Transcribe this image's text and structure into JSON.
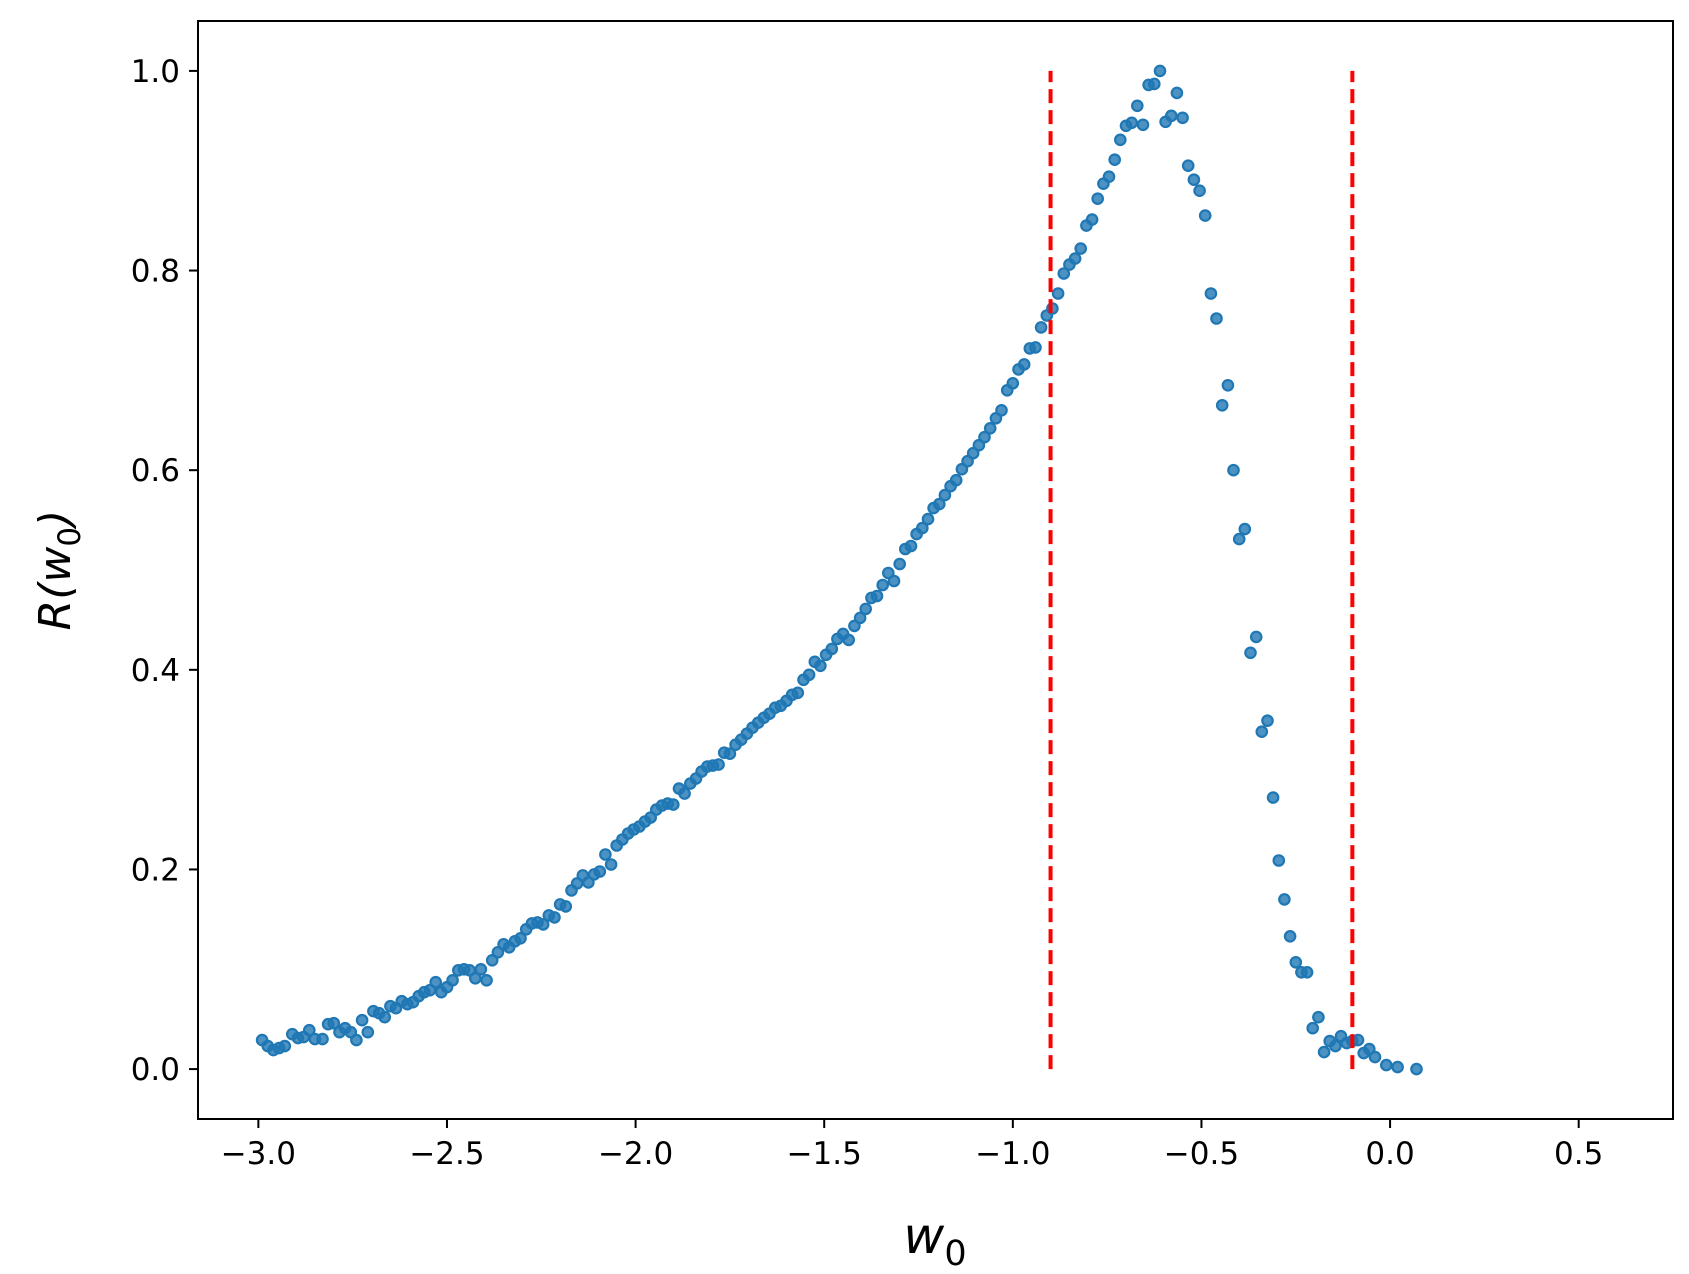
{
  "chart_data": {
    "type": "scatter",
    "title": "",
    "xlabel": {
      "base": "w",
      "sub": "0"
    },
    "ylabel": {
      "prefix": "R(",
      "base": "w",
      "sub": "0",
      "suffix": ")"
    },
    "xlim": [
      -3.16,
      0.75
    ],
    "ylim": [
      -0.05,
      1.05
    ],
    "x_ticks": [
      -3.0,
      -2.5,
      -2.0,
      -1.5,
      -1.0,
      -0.5,
      0.0,
      0.5
    ],
    "x_tick_labels": [
      "−3.0",
      "−2.5",
      "−2.0",
      "−1.5",
      "−1.0",
      "−0.5",
      "0.0",
      "0.5"
    ],
    "y_ticks": [
      0.0,
      0.2,
      0.4,
      0.6,
      0.8,
      1.0
    ],
    "y_tick_labels": [
      "0.0",
      "0.2",
      "0.4",
      "0.6",
      "0.8",
      "1.0"
    ],
    "grid": false,
    "marker_color": "#1f77b4",
    "vlines": [
      {
        "x": -0.9,
        "y_range": [
          0.0,
          1.0
        ],
        "color": "#ff0000",
        "style": "dashed"
      },
      {
        "x": -0.1,
        "y_range": [
          0.0,
          1.0
        ],
        "color": "#ff0000",
        "style": "dashed"
      }
    ],
    "points": [
      [
        -2.99,
        0.029
      ],
      [
        -2.975,
        0.023
      ],
      [
        -2.96,
        0.019
      ],
      [
        -2.945,
        0.021
      ],
      [
        -2.93,
        0.023
      ],
      [
        -2.91,
        0.035
      ],
      [
        -2.895,
        0.031
      ],
      [
        -2.88,
        0.032
      ],
      [
        -2.865,
        0.039
      ],
      [
        -2.85,
        0.03
      ],
      [
        -2.83,
        0.03
      ],
      [
        -2.815,
        0.045
      ],
      [
        -2.8,
        0.046
      ],
      [
        -2.785,
        0.037
      ],
      [
        -2.77,
        0.041
      ],
      [
        -2.755,
        0.037
      ],
      [
        -2.74,
        0.029
      ],
      [
        -2.725,
        0.049
      ],
      [
        -2.71,
        0.037
      ],
      [
        -2.695,
        0.058
      ],
      [
        -2.68,
        0.056
      ],
      [
        -2.665,
        0.052
      ],
      [
        -2.65,
        0.063
      ],
      [
        -2.635,
        0.061
      ],
      [
        -2.62,
        0.068
      ],
      [
        -2.605,
        0.065
      ],
      [
        -2.59,
        0.067
      ],
      [
        -2.575,
        0.073
      ],
      [
        -2.56,
        0.077
      ],
      [
        -2.545,
        0.079
      ],
      [
        -2.53,
        0.087
      ],
      [
        -2.515,
        0.077
      ],
      [
        -2.5,
        0.082
      ],
      [
        -2.485,
        0.089
      ],
      [
        -2.47,
        0.099
      ],
      [
        -2.455,
        0.1
      ],
      [
        -2.44,
        0.099
      ],
      [
        -2.425,
        0.091
      ],
      [
        -2.41,
        0.1
      ],
      [
        -2.395,
        0.089
      ],
      [
        -2.38,
        0.109
      ],
      [
        -2.365,
        0.117
      ],
      [
        -2.35,
        0.125
      ],
      [
        -2.335,
        0.122
      ],
      [
        -2.32,
        0.128
      ],
      [
        -2.305,
        0.131
      ],
      [
        -2.29,
        0.14
      ],
      [
        -2.275,
        0.146
      ],
      [
        -2.26,
        0.147
      ],
      [
        -2.245,
        0.145
      ],
      [
        -2.23,
        0.154
      ],
      [
        -2.215,
        0.152
      ],
      [
        -2.2,
        0.165
      ],
      [
        -2.185,
        0.163
      ],
      [
        -2.17,
        0.179
      ],
      [
        -2.155,
        0.186
      ],
      [
        -2.14,
        0.194
      ],
      [
        -2.125,
        0.187
      ],
      [
        -2.11,
        0.195
      ],
      [
        -2.095,
        0.198
      ],
      [
        -2.08,
        0.215
      ],
      [
        -2.065,
        0.205
      ],
      [
        -2.05,
        0.224
      ],
      [
        -2.035,
        0.23
      ],
      [
        -2.02,
        0.236
      ],
      [
        -2.005,
        0.24
      ],
      [
        -1.99,
        0.243
      ],
      [
        -1.975,
        0.248
      ],
      [
        -1.96,
        0.252
      ],
      [
        -1.945,
        0.26
      ],
      [
        -1.93,
        0.264
      ],
      [
        -1.915,
        0.266
      ],
      [
        -1.9,
        0.265
      ],
      [
        -1.885,
        0.281
      ],
      [
        -1.87,
        0.276
      ],
      [
        -1.855,
        0.286
      ],
      [
        -1.84,
        0.291
      ],
      [
        -1.825,
        0.298
      ],
      [
        -1.81,
        0.303
      ],
      [
        -1.795,
        0.304
      ],
      [
        -1.78,
        0.305
      ],
      [
        -1.765,
        0.317
      ],
      [
        -1.75,
        0.316
      ],
      [
        -1.735,
        0.325
      ],
      [
        -1.72,
        0.33
      ],
      [
        -1.705,
        0.336
      ],
      [
        -1.69,
        0.342
      ],
      [
        -1.675,
        0.347
      ],
      [
        -1.66,
        0.352
      ],
      [
        -1.645,
        0.356
      ],
      [
        -1.63,
        0.362
      ],
      [
        -1.615,
        0.364
      ],
      [
        -1.6,
        0.369
      ],
      [
        -1.585,
        0.375
      ],
      [
        -1.57,
        0.377
      ],
      [
        -1.555,
        0.39
      ],
      [
        -1.54,
        0.395
      ],
      [
        -1.525,
        0.408
      ],
      [
        -1.51,
        0.404
      ],
      [
        -1.495,
        0.415
      ],
      [
        -1.48,
        0.421
      ],
      [
        -1.465,
        0.431
      ],
      [
        -1.45,
        0.436
      ],
      [
        -1.435,
        0.43
      ],
      [
        -1.42,
        0.444
      ],
      [
        -1.405,
        0.452
      ],
      [
        -1.39,
        0.461
      ],
      [
        -1.375,
        0.472
      ],
      [
        -1.36,
        0.474
      ],
      [
        -1.345,
        0.485
      ],
      [
        -1.33,
        0.497
      ],
      [
        -1.315,
        0.489
      ],
      [
        -1.3,
        0.506
      ],
      [
        -1.285,
        0.521
      ],
      [
        -1.27,
        0.524
      ],
      [
        -1.255,
        0.536
      ],
      [
        -1.24,
        0.542
      ],
      [
        -1.225,
        0.551
      ],
      [
        -1.21,
        0.562
      ],
      [
        -1.195,
        0.566
      ],
      [
        -1.18,
        0.575
      ],
      [
        -1.165,
        0.584
      ],
      [
        -1.15,
        0.59
      ],
      [
        -1.135,
        0.601
      ],
      [
        -1.12,
        0.609
      ],
      [
        -1.105,
        0.617
      ],
      [
        -1.09,
        0.625
      ],
      [
        -1.075,
        0.633
      ],
      [
        -1.06,
        0.642
      ],
      [
        -1.045,
        0.652
      ],
      [
        -1.03,
        0.66
      ],
      [
        -1.015,
        0.68
      ],
      [
        -1.0,
        0.687
      ],
      [
        -0.985,
        0.701
      ],
      [
        -0.97,
        0.706
      ],
      [
        -0.955,
        0.722
      ],
      [
        -0.94,
        0.723
      ],
      [
        -0.925,
        0.743
      ],
      [
        -0.91,
        0.755
      ],
      [
        -0.895,
        0.762
      ],
      [
        -0.88,
        0.777
      ],
      [
        -0.865,
        0.797
      ],
      [
        -0.85,
        0.806
      ],
      [
        -0.835,
        0.812
      ],
      [
        -0.82,
        0.822
      ],
      [
        -0.805,
        0.845
      ],
      [
        -0.79,
        0.851
      ],
      [
        -0.775,
        0.872
      ],
      [
        -0.76,
        0.887
      ],
      [
        -0.745,
        0.894
      ],
      [
        -0.73,
        0.911
      ],
      [
        -0.715,
        0.931
      ],
      [
        -0.7,
        0.945
      ],
      [
        -0.685,
        0.948
      ],
      [
        -0.67,
        0.965
      ],
      [
        -0.655,
        0.946
      ],
      [
        -0.64,
        0.986
      ],
      [
        -0.625,
        0.987
      ],
      [
        -0.61,
        1.0
      ],
      [
        -0.595,
        0.949
      ],
      [
        -0.58,
        0.955
      ],
      [
        -0.565,
        0.978
      ],
      [
        -0.55,
        0.953
      ],
      [
        -0.535,
        0.905
      ],
      [
        -0.52,
        0.891
      ],
      [
        -0.505,
        0.88
      ],
      [
        -0.49,
        0.855
      ],
      [
        -0.475,
        0.777
      ],
      [
        -0.46,
        0.752
      ],
      [
        -0.445,
        0.665
      ],
      [
        -0.43,
        0.685
      ],
      [
        -0.415,
        0.6
      ],
      [
        -0.4,
        0.531
      ],
      [
        -0.385,
        0.541
      ],
      [
        -0.37,
        0.417
      ],
      [
        -0.355,
        0.433
      ],
      [
        -0.34,
        0.338
      ],
      [
        -0.325,
        0.349
      ],
      [
        -0.31,
        0.272
      ],
      [
        -0.295,
        0.209
      ],
      [
        -0.28,
        0.17
      ],
      [
        -0.265,
        0.133
      ],
      [
        -0.25,
        0.107
      ],
      [
        -0.235,
        0.097
      ],
      [
        -0.22,
        0.097
      ],
      [
        -0.205,
        0.041
      ],
      [
        -0.19,
        0.052
      ],
      [
        -0.175,
        0.017
      ],
      [
        -0.16,
        0.028
      ],
      [
        -0.145,
        0.023
      ],
      [
        -0.13,
        0.033
      ],
      [
        -0.115,
        0.026
      ],
      [
        -0.1,
        0.028
      ],
      [
        -0.085,
        0.029
      ],
      [
        -0.07,
        0.016
      ],
      [
        -0.055,
        0.02
      ],
      [
        -0.04,
        0.012
      ],
      [
        -0.01,
        0.004
      ],
      [
        0.02,
        0.002
      ],
      [
        0.07,
        0.0
      ]
    ]
  }
}
